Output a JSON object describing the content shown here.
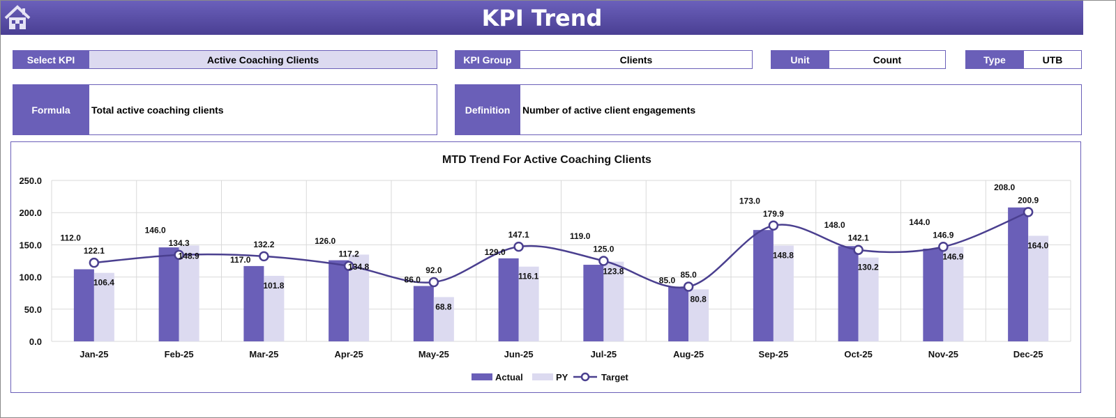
{
  "header": {
    "title": "KPI Trend",
    "home_icon": "home-icon"
  },
  "fields": {
    "select_kpi_label": "Select KPI",
    "select_kpi_value": "Active Coaching Clients",
    "kpi_group_label": "KPI Group",
    "kpi_group_value": "Clients",
    "unit_label": "Unit",
    "unit_value": "Count",
    "type_label": "Type",
    "type_value": "UTB",
    "formula_label": "Formula",
    "formula_value": "Total active coaching clients",
    "definition_label": "Definition",
    "definition_value": "Number of active client engagements"
  },
  "colors": {
    "accent": "#6a5fb8",
    "py": "#dcdaf0",
    "target": "#4a3f8f"
  },
  "chart_data": {
    "type": "bar",
    "title": "MTD Trend For Active Coaching Clients",
    "categories": [
      "Jan-25",
      "Feb-25",
      "Mar-25",
      "Apr-25",
      "May-25",
      "Jun-25",
      "Jul-25",
      "Aug-25",
      "Sep-25",
      "Oct-25",
      "Nov-25",
      "Dec-25"
    ],
    "series": [
      {
        "name": "Actual",
        "type": "bar",
        "values": [
          112.0,
          146.0,
          117.0,
          126.0,
          86.0,
          129.0,
          119.0,
          85.0,
          173.0,
          148.0,
          144.0,
          208.0
        ]
      },
      {
        "name": "PY",
        "type": "bar",
        "values": [
          106.4,
          148.9,
          101.8,
          134.8,
          68.8,
          116.1,
          123.8,
          80.8,
          148.8,
          130.2,
          146.9,
          164.0
        ]
      },
      {
        "name": "Target",
        "type": "line",
        "values": [
          122.1,
          134.3,
          132.2,
          117.2,
          92.0,
          147.1,
          125.0,
          85.0,
          179.9,
          142.1,
          146.9,
          200.9
        ]
      }
    ],
    "ylim": [
      0,
      250
    ],
    "yticks": [
      "0.0",
      "50.0",
      "100.0",
      "150.0",
      "200.0",
      "250.0"
    ],
    "grid": true,
    "legend": "bottom"
  }
}
